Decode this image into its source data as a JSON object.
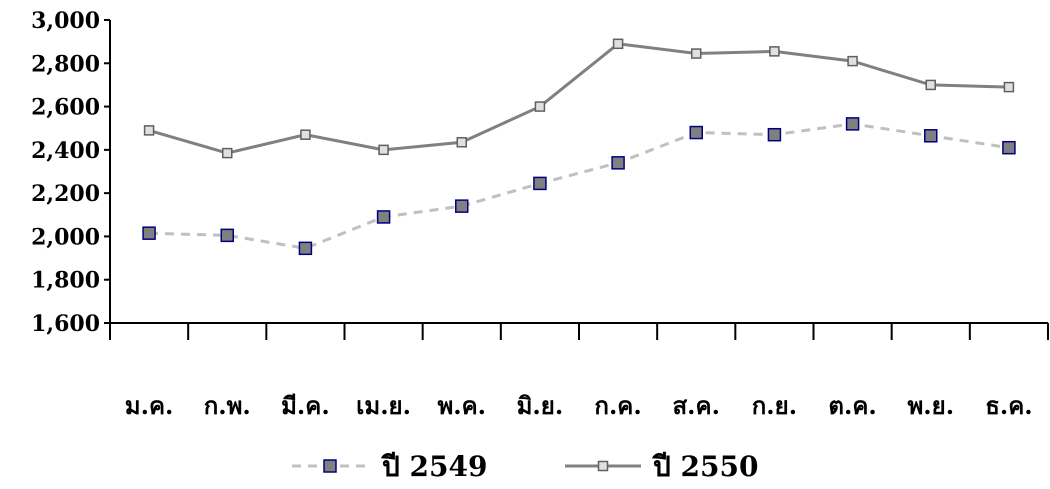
{
  "chart_data": {
    "type": "line",
    "categories": [
      "ม.ค.",
      "ก.พ.",
      "มี.ค.",
      "เม.ย.",
      "พ.ค.",
      "มิ.ย.",
      "ก.ค.",
      "ส.ค.",
      "ก.ย.",
      "ต.ค.",
      "พ.ย.",
      "ธ.ค."
    ],
    "series": [
      {
        "name": "ปี 2549",
        "values": [
          2015,
          2005,
          1945,
          2090,
          2140,
          2245,
          2340,
          2480,
          2470,
          2520,
          2465,
          2410
        ],
        "line_color": "#c0c0c0",
        "line_style": "dashed",
        "marker_fill": "#808080",
        "marker_stroke": "#000080"
      },
      {
        "name": "ปี 2550",
        "values": [
          2490,
          2385,
          2470,
          2400,
          2435,
          2600,
          2890,
          2845,
          2855,
          2810,
          2700,
          2690
        ],
        "line_color": "#808080",
        "line_style": "solid",
        "marker_fill": "#e0e0e0",
        "marker_stroke": "#606060"
      }
    ],
    "ylim": [
      1600,
      3000
    ],
    "yticks": [
      "1,600",
      "1,800",
      "2,000",
      "2,200",
      "2,400",
      "2,600",
      "2,800",
      "3,000"
    ],
    "grid": false,
    "legend_position": "bottom"
  }
}
